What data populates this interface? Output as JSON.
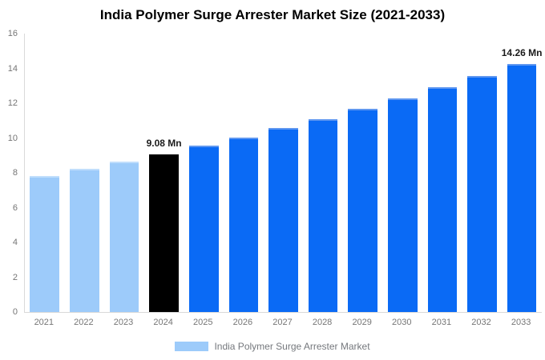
{
  "chart_data": {
    "type": "bar",
    "title": "India Polymer Surge Arrester Market Size (2021-2033)",
    "categories": [
      "2021",
      "2022",
      "2023",
      "2024",
      "2025",
      "2026",
      "2027",
      "2028",
      "2029",
      "2030",
      "2031",
      "2032",
      "2033"
    ],
    "values": [
      7.81,
      8.21,
      8.64,
      9.08,
      9.55,
      10.04,
      10.56,
      11.1,
      11.67,
      12.27,
      12.9,
      13.56,
      14.26
    ],
    "unit": "Mn",
    "xlabel": "",
    "ylabel": "",
    "ylim": [
      0,
      16
    ],
    "yticks": [
      0,
      2,
      4,
      6,
      8,
      10,
      12,
      14,
      16
    ],
    "grid": false,
    "legend_position": "bottom",
    "series_name": "India Polymer Surge Arrester Market",
    "bar_roles": [
      "historical",
      "historical",
      "historical",
      "base_year",
      "forecast",
      "forecast",
      "forecast",
      "forecast",
      "forecast",
      "forecast",
      "forecast",
      "forecast",
      "forecast"
    ],
    "colors": {
      "historical": {
        "fill": "#9dcbfa",
        "top": "#c0defc"
      },
      "base_year": {
        "fill": "#000000",
        "top": "#000000"
      },
      "forecast": {
        "fill": "#0a6af5",
        "top": "#5f97f0"
      }
    },
    "axis_line_color": "#d9d9d9",
    "tick_label_color": "#757575",
    "annotations": [
      {
        "index": 3,
        "label": "9.08 Mn"
      },
      {
        "index": 12,
        "label": "14.26 Mn"
      }
    ]
  },
  "legend": {
    "label": "India Polymer Surge Arrester Market",
    "swatch_color": "#9dcbfa"
  }
}
